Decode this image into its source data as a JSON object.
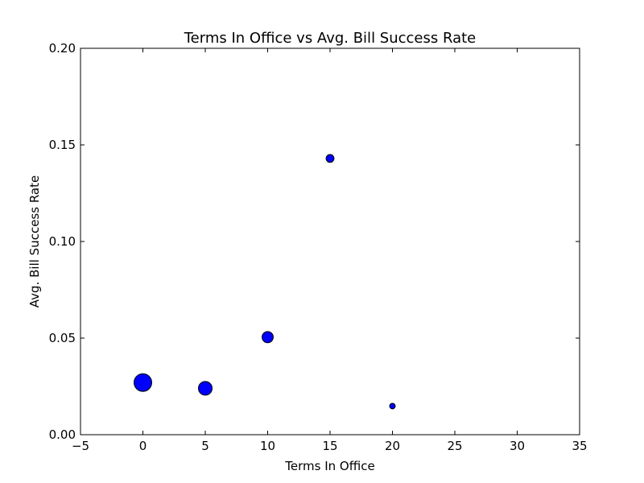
{
  "chart_data": {
    "type": "scatter",
    "title": "Terms In Office vs Avg. Bill Success Rate",
    "xlabel": "Terms In Office",
    "ylabel": "Avg. Bill Success Rate",
    "xlim": [
      -5,
      35
    ],
    "ylim": [
      0.0,
      0.2
    ],
    "xticks": [
      -5,
      0,
      5,
      10,
      15,
      20,
      25,
      30,
      35
    ],
    "xtick_labels": [
      "−5",
      "0",
      "5",
      "10",
      "15",
      "20",
      "25",
      "30",
      "35"
    ],
    "yticks": [
      0.0,
      0.05,
      0.1,
      0.15,
      0.2
    ],
    "ytick_labels": [
      "0.00",
      "0.05",
      "0.10",
      "0.15",
      "0.20"
    ],
    "grid": false,
    "marker_color": "#0000ff",
    "marker_edge_color": "#000000",
    "points": [
      {
        "x": 0,
        "y": 0.027,
        "relative_size": 1.0
      },
      {
        "x": 5,
        "y": 0.024,
        "relative_size": 0.6
      },
      {
        "x": 10,
        "y": 0.0505,
        "relative_size": 0.4
      },
      {
        "x": 15,
        "y": 0.143,
        "relative_size": 0.2
      },
      {
        "x": 20,
        "y": 0.0148,
        "relative_size": 0.1
      }
    ]
  }
}
